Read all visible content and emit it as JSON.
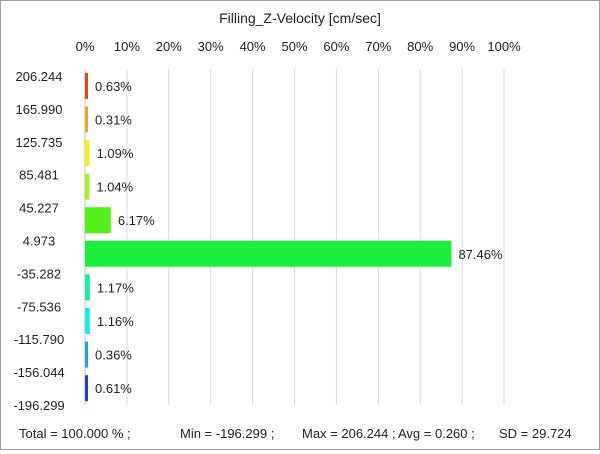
{
  "chart_data": {
    "type": "bar",
    "orientation": "horizontal",
    "title": "Filling_Z-Velocity [cm/sec]",
    "xlabel": "",
    "ylabel": "",
    "xlim": [
      0,
      100
    ],
    "x_ticks": [
      "0%",
      "10%",
      "20%",
      "30%",
      "40%",
      "50%",
      "60%",
      "70%",
      "80%",
      "90%",
      "100%"
    ],
    "y_boundaries": [
      "206.244",
      "165.990",
      "125.735",
      "85.481",
      "45.227",
      "4.973",
      "-35.282",
      "-75.536",
      "-115.790",
      "-156.044",
      "-196.299"
    ],
    "bars": [
      {
        "value": 0.63,
        "label": "0.63%",
        "color": "#e8441c"
      },
      {
        "value": 0.31,
        "label": "0.31%",
        "color": "#e8a81c"
      },
      {
        "value": 1.09,
        "label": "1.09%",
        "color": "#f2f21a"
      },
      {
        "value": 1.04,
        "label": "1.04%",
        "color": "#aaf01a"
      },
      {
        "value": 6.17,
        "label": "6.17%",
        "color": "#55f01a"
      },
      {
        "value": 87.46,
        "label": "87.46%",
        "color": "#1af03c"
      },
      {
        "value": 1.17,
        "label": "1.17%",
        "color": "#1af0a0"
      },
      {
        "value": 1.16,
        "label": "1.16%",
        "color": "#1ae8f0"
      },
      {
        "value": 0.36,
        "label": "0.36%",
        "color": "#1aa0f0"
      },
      {
        "value": 0.61,
        "label": "0.61%",
        "color": "#1a3cd8"
      }
    ],
    "grid": true,
    "legend": "none"
  },
  "footer": {
    "total": "Total = 100.000 % ;",
    "min": "Min = -196.299 ;",
    "max": "Max = 206.244 ;",
    "avg": "Avg = 0.260 ;",
    "sd": "SD = 29.724"
  }
}
